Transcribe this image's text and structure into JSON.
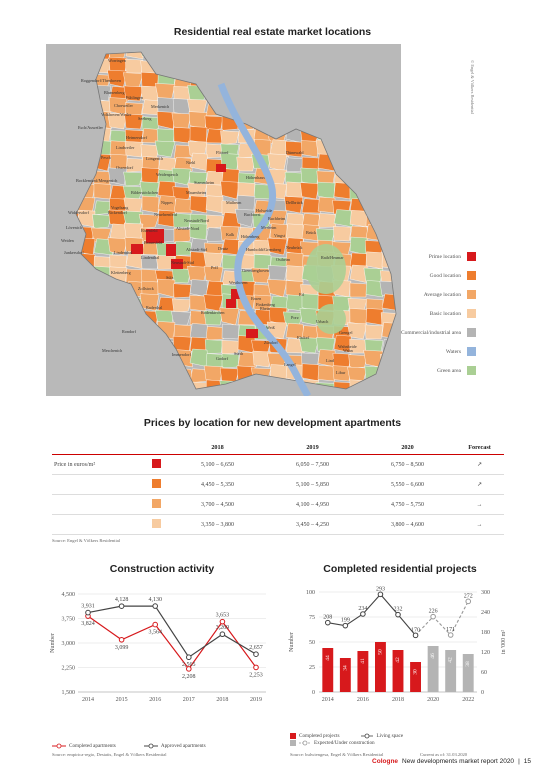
{
  "map_section": {
    "title": "Residential real estate market locations",
    "copyright": "© Engel & Völkers Residential",
    "legend": [
      {
        "label": "Prime location",
        "color": "#d7191c"
      },
      {
        "label": "Good location",
        "color": "#ee7d2e"
      },
      {
        "label": "Average location",
        "color": "#f2a766"
      },
      {
        "label": "Basic location",
        "color": "#f7cba0"
      },
      {
        "label": "Commercial/industrial area",
        "color": "#b4b4b4"
      },
      {
        "label": "Waters",
        "color": "#94b4dc"
      },
      {
        "label": "Green area",
        "color": "#aacf94"
      }
    ],
    "place_labels": [
      "Worringen",
      "Roggendorf/Thenhoven",
      "Blumenberg",
      "Fühlingen",
      "Chorweiler",
      "Merkenich",
      "Volkhoven/Weiler",
      "Seeberg",
      "Esch/Auweiler",
      "Heimersdorf",
      "Lindweiler",
      "Pesch",
      "Longerich",
      "Niehl",
      "Flittard",
      "Dünnwald",
      "Ossendorf",
      "Weidenpesch",
      "Stammheim",
      "Höhenhaus",
      "Bocklemünd/Mengenich",
      "Bilderstöckchen",
      "Mauenheim",
      "Dellbrück",
      "Vogelsang",
      "Widdersdorf",
      "Bickendorf",
      "Nippes",
      "Neuehrenfeld",
      "Mülheim",
      "Holweide",
      "Buchforst",
      "Buchheim",
      "Lövenich",
      "Ehrenfeld",
      "Merheim",
      "Brück",
      "Junkersdorf",
      "Braunsfeld",
      "Neustadt-Nord",
      "Altstadt-Nord",
      "Kalk",
      "Höhenberg",
      "Vingst",
      "Weiden",
      "Lindenthal",
      "Deutz",
      "Altstadt-Süd",
      "Humboldt/Gremberg",
      "Ostheim",
      "Neubrück",
      "Rath/Heumar",
      "Neustadt-Süd",
      "Poll",
      "Klettenberg",
      "Sülz",
      "Zollstock",
      "Westhoven",
      "Eil",
      "Ensen",
      "Gremberghoven",
      "Finkenberg",
      "Raderthal",
      "Rodenkirchen",
      "Porz",
      "Urbach",
      "Rondorf",
      "Weiß",
      "Grengel",
      "Elsdorf",
      "Zündorf",
      "Wahnheide",
      "Meschenich",
      "Immendorf",
      "Godorf",
      "Wahn",
      "Lind",
      "Libur",
      "Sürth",
      "Langel",
      "Lindenthal",
      "Rhein"
    ]
  },
  "prices_section": {
    "title": "Prices by location for new development apartments",
    "columns": [
      "2018",
      "2019",
      "2020",
      "Forecast"
    ],
    "row_label": "Price in euros/m²",
    "rows": [
      {
        "color": "#d7191c",
        "y2018": "5,100 – 6,650",
        "y2019": "6,050 – 7,500",
        "y2020": "6,750 – 8,500",
        "forecast": "↗"
      },
      {
        "color": "#ee7d2e",
        "y2018": "4,450 – 5,350",
        "y2019": "5,100 – 5,850",
        "y2020": "5,550 – 6,600",
        "forecast": "↗"
      },
      {
        "color": "#f2a766",
        "y2018": "3,700 – 4,500",
        "y2019": "4,100 – 4,950",
        "y2020": "4,750 – 5,750",
        "forecast": "→"
      },
      {
        "color": "#f7cba0",
        "y2018": "3,350 – 3,800",
        "y2019": "3,450 – 4,250",
        "y2020": "3,800 – 4,600",
        "forecast": "→"
      }
    ],
    "source": "Source: Engel & Völkers Residential"
  },
  "construction_chart": {
    "title": "Construction activity",
    "ylabel": "Number",
    "yticks": [
      "4,500",
      "3,750",
      "3,000",
      "2,250",
      "1,500"
    ],
    "legend_completed": "Completed apartments",
    "legend_approved": "Approved apartments",
    "source": "Source: empirica-regio, Destatis, Engel & Völkers Residential"
  },
  "projects_chart": {
    "title": "Completed residential projects",
    "ylabel_left": "Number",
    "ylabel_right": "in '000 m²",
    "yticks_left": [
      "100",
      "75",
      "50",
      "25",
      "0"
    ],
    "yticks_right": [
      "300",
      "240",
      "180",
      "120",
      "60",
      "0"
    ],
    "xticks": [
      "2014",
      "2016",
      "2018",
      "2020",
      "2022"
    ],
    "legend_completed": "Completed projects",
    "legend_living": "Living space",
    "legend_expected": "Expected/Under construction",
    "source": "Source: bulwiengesa, Engel & Völkers Residential",
    "current": "Current as of: 31.03.2020"
  },
  "chart_data": [
    {
      "type": "line",
      "title": "Construction activity",
      "ylabel": "Number",
      "ylim": [
        1500,
        4500
      ],
      "x": [
        "2014",
        "2015",
        "2016",
        "2017",
        "2018",
        "2019"
      ],
      "series": [
        {
          "name": "Completed apartments",
          "color": "#d7191c",
          "values": [
            3824,
            3099,
            3564,
            2208,
            3653,
            2253
          ]
        },
        {
          "name": "Approved apartments",
          "color": "#444444",
          "values": [
            3931,
            4128,
            4130,
            2565,
            3269,
            2657
          ]
        }
      ]
    },
    {
      "type": "bar",
      "title": "Completed residential projects",
      "x": [
        "2014",
        "2015",
        "2016",
        "2017",
        "2018",
        "2019",
        "2020",
        "2021",
        "2022"
      ],
      "series": [
        {
          "name": "Completed projects",
          "color": "#d7191c",
          "values": [
            44,
            34,
            41,
            50,
            42,
            30,
            null,
            null,
            null
          ]
        },
        {
          "name": "Expected/Under construction",
          "color": "#b4b4b4",
          "values": [
            null,
            null,
            null,
            null,
            null,
            null,
            46,
            42,
            38
          ]
        },
        {
          "name": "Living space",
          "color": "#444444",
          "axis": "right",
          "values": [
            208,
            199,
            234,
            293,
            232,
            170,
            226,
            171,
            272
          ]
        }
      ],
      "ylim_left": [
        0,
        100
      ],
      "ylim_right": [
        0,
        300
      ]
    }
  ],
  "footer": {
    "city": "Cologne",
    "title": "New developments market report 2020",
    "separator": "|",
    "page": "15"
  }
}
